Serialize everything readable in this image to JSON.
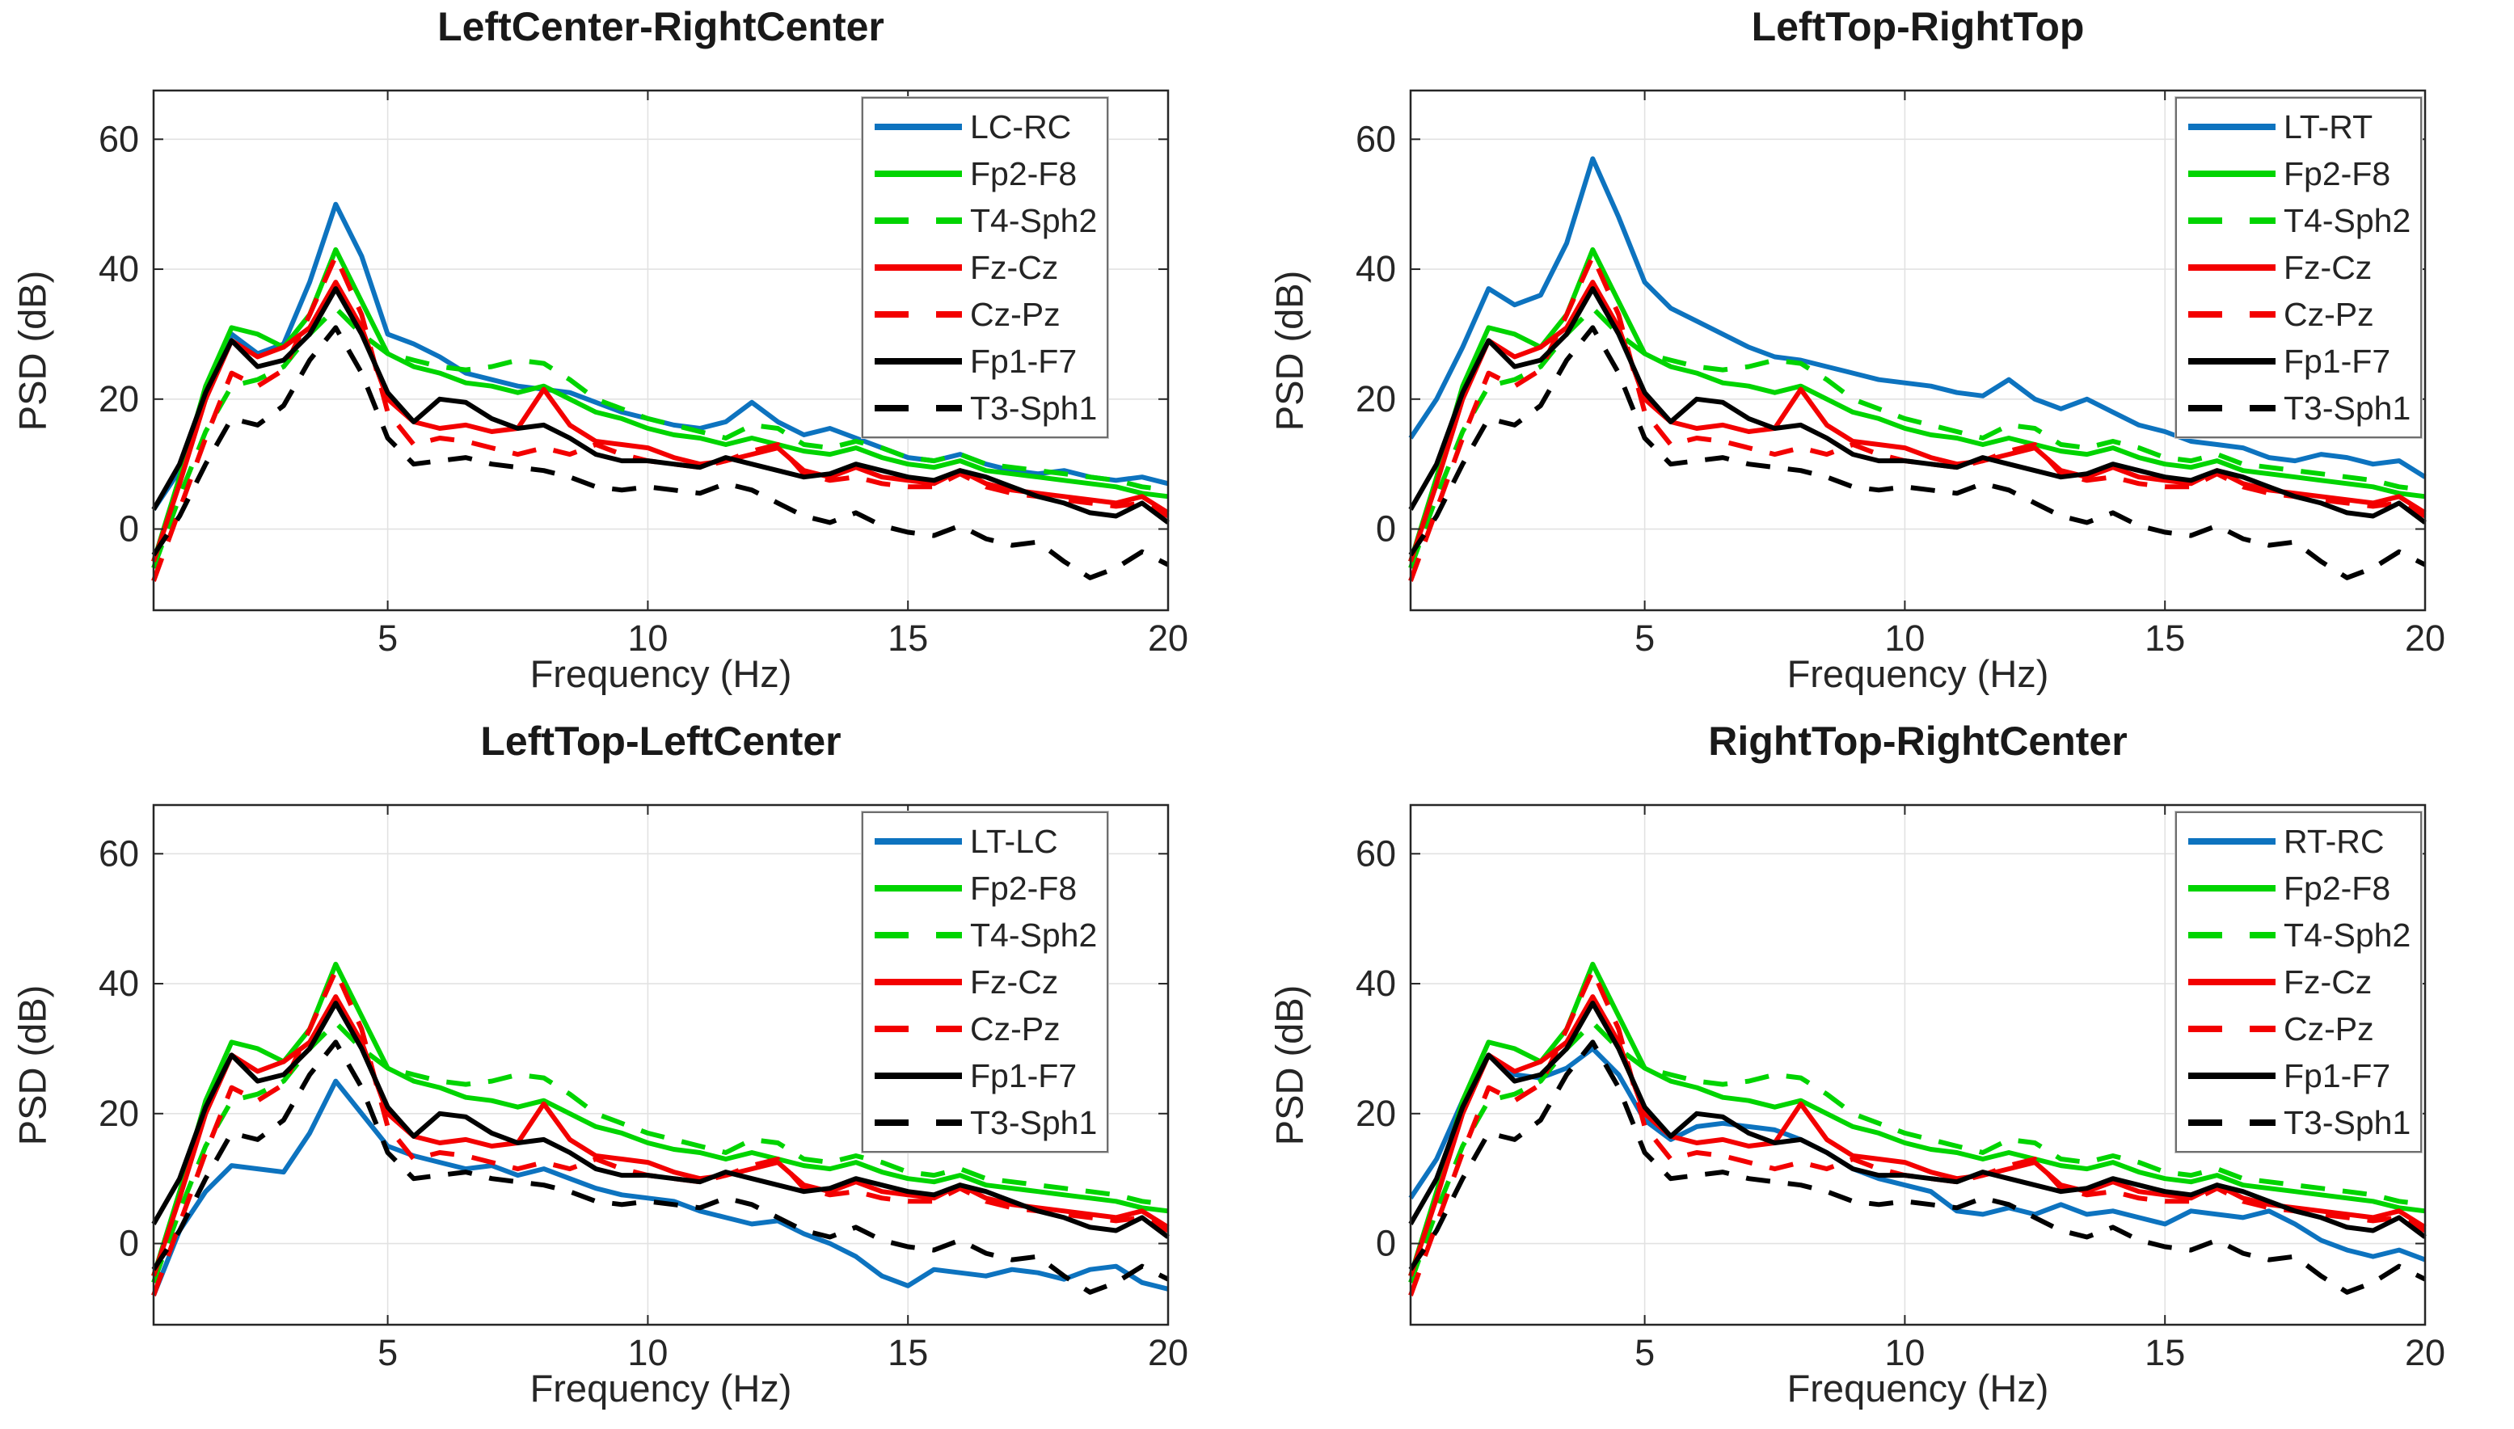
{
  "chart_data": {
    "type": "line",
    "xlabel": "Frequency (Hz)",
    "ylabel": "PSD (dB)",
    "xlim": [
      0.5,
      20
    ],
    "ylim": [
      -12.5,
      67.5
    ],
    "xticks": [
      5,
      10,
      15,
      20
    ],
    "yticks": [
      0,
      20,
      40,
      60
    ],
    "grid": true,
    "legend_position": "upper-right",
    "colors": {
      "blue": "#0d73bf",
      "green": "#00d400",
      "red": "#f30000",
      "black": "#000000"
    },
    "x": [
      0.5,
      1,
      1.5,
      2,
      2.5,
      3,
      3.5,
      4,
      4.5,
      5,
      5.5,
      6,
      6.5,
      7,
      7.5,
      8,
      8.5,
      9,
      9.5,
      10,
      10.5,
      11,
      11.5,
      12,
      12.5,
      13,
      13.5,
      14,
      14.5,
      15,
      15.5,
      16,
      16.5,
      17,
      17.5,
      18,
      18.5,
      19,
      19.5,
      20
    ],
    "reference_series": [
      {
        "name": "Fp2-F8",
        "color": "green",
        "dash": false,
        "values": [
          -5,
          8,
          22,
          31,
          30,
          28,
          33,
          43,
          35,
          27,
          25,
          24,
          22.5,
          22,
          21,
          22,
          20,
          18,
          17,
          15.5,
          14.5,
          14,
          13,
          14,
          13,
          12,
          11.5,
          12.5,
          11,
          10,
          9.5,
          10.5,
          9,
          8.5,
          8,
          7.5,
          7,
          6.5,
          5.5,
          5
        ]
      },
      {
        "name": "T4-Sph2",
        "color": "green",
        "dash": true,
        "values": [
          -6,
          5,
          15,
          22,
          23,
          25,
          30,
          34,
          30,
          27,
          26,
          25,
          24.5,
          25,
          26,
          25.5,
          23,
          20,
          18.5,
          17,
          16,
          15,
          14,
          16,
          15.5,
          13,
          12.5,
          13.5,
          12.5,
          11,
          10.5,
          11.5,
          10,
          9.5,
          9,
          8.5,
          8,
          7.5,
          6.5,
          6
        ]
      },
      {
        "name": "Fz-Cz",
        "color": "red",
        "dash": false,
        "values": [
          -5,
          7,
          20,
          29,
          26.5,
          28,
          31,
          38,
          31,
          20,
          16.5,
          15.5,
          16,
          15,
          15.5,
          21.5,
          16,
          13.5,
          13,
          12.5,
          11,
          10,
          10.5,
          11.5,
          12.5,
          9,
          8,
          9.5,
          8,
          7.5,
          7,
          9,
          7,
          6,
          5.5,
          5,
          4.5,
          4,
          5,
          2.5
        ]
      },
      {
        "name": "Cz-Pz",
        "color": "red",
        "dash": true,
        "values": [
          -8,
          3,
          14,
          24,
          22,
          24.5,
          33,
          42,
          33,
          18,
          13,
          14,
          13.5,
          12.5,
          11.5,
          12.5,
          11.5,
          13,
          11.5,
          10.5,
          10,
          9.5,
          10.5,
          12,
          13,
          8.5,
          7.5,
          8,
          7,
          6.5,
          6.5,
          8.5,
          6.5,
          5.5,
          5,
          4.5,
          4,
          3.5,
          4,
          2
        ]
      },
      {
        "name": "Fp1-F7",
        "color": "black",
        "dash": false,
        "values": [
          3,
          10,
          21,
          29,
          25,
          26,
          30,
          37,
          30,
          21,
          16.5,
          20,
          19.5,
          17,
          15.5,
          16,
          14,
          11.5,
          10.5,
          10.5,
          10,
          9.5,
          11,
          10,
          9,
          8,
          8.5,
          10,
          9,
          8,
          7.5,
          9,
          8,
          6.5,
          5,
          4,
          2.5,
          2,
          4,
          1
        ]
      },
      {
        "name": "T3-Sph1",
        "color": "black",
        "dash": true,
        "values": [
          -4,
          2,
          10,
          17,
          16,
          19,
          26,
          31,
          24,
          14,
          10,
          10.5,
          11,
          10,
          9.5,
          9,
          8,
          6.5,
          6,
          6.5,
          6,
          5.5,
          7,
          6,
          4,
          2,
          1,
          2.5,
          0.5,
          -0.5,
          -1,
          0.5,
          -1.5,
          -2.5,
          -2,
          -5,
          -7.5,
          -6,
          -3.5,
          -5.5
        ]
      }
    ],
    "subplots": [
      {
        "title": "LeftCenter-RightCenter",
        "highlight_series": {
          "name": "LC-RC",
          "color": "blue",
          "dash": false,
          "values": [
            3,
            9,
            20,
            30,
            27,
            28.5,
            38,
            50,
            42,
            30,
            28.5,
            26.5,
            24,
            23,
            22,
            21.5,
            21,
            19.5,
            18,
            17,
            16,
            15.5,
            16.5,
            19.5,
            16.5,
            14.5,
            15.5,
            14,
            12.5,
            11,
            10.5,
            11.5,
            10,
            9,
            8.5,
            9,
            8,
            7.5,
            8,
            7
          ]
        }
      },
      {
        "title": "LeftTop-RightTop",
        "highlight_series": {
          "name": "LT-RT",
          "color": "blue",
          "dash": false,
          "values": [
            14,
            20,
            28,
            37,
            34.5,
            36,
            44,
            57,
            48,
            38,
            34,
            32,
            30,
            28,
            26.5,
            26,
            25,
            24,
            23,
            22.5,
            22,
            21,
            20.5,
            23,
            20,
            18.5,
            20,
            18,
            16,
            15,
            13.5,
            13,
            12.5,
            11,
            10.5,
            11.5,
            11,
            10,
            10.5,
            8
          ]
        }
      },
      {
        "title": "LeftTop-LeftCenter",
        "highlight_series": {
          "name": "LT-LC",
          "color": "blue",
          "dash": false,
          "values": [
            -8,
            2,
            8,
            12,
            11.5,
            11,
            17,
            25,
            20,
            15,
            13.5,
            12.5,
            11.5,
            12,
            10.5,
            11.5,
            10,
            8.5,
            7.5,
            7,
            6.5,
            5,
            4,
            3,
            3.5,
            1.5,
            0,
            -2,
            -5,
            -6.5,
            -4,
            -4.5,
            -5,
            -4,
            -4.5,
            -5.5,
            -4,
            -3.5,
            -6,
            -7
          ]
        }
      },
      {
        "title": "RightTop-RightCenter",
        "highlight_series": {
          "name": "RT-RC",
          "color": "blue",
          "dash": false,
          "values": [
            7,
            13,
            22,
            29,
            26,
            25.5,
            27,
            30,
            26,
            19,
            16,
            18,
            18.5,
            18,
            17.5,
            16,
            14,
            11.5,
            10,
            9,
            8,
            5,
            4.5,
            5.5,
            4.5,
            6,
            4.5,
            5,
            4,
            3,
            5,
            4.5,
            4,
            5,
            3,
            0.5,
            -1,
            -2,
            -1,
            -2.5
          ]
        }
      }
    ]
  }
}
